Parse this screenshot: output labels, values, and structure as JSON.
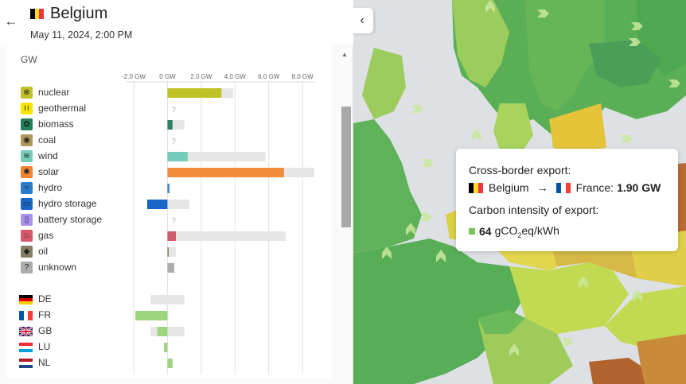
{
  "header": {
    "back_icon": "←",
    "zone_name": "Belgium",
    "datetime": "May 11, 2024, 2:00 PM",
    "collapse_icon": "‹",
    "flag_colors": [
      "#000000",
      "#fdda24",
      "#ef3340"
    ]
  },
  "panel": {
    "clipped_title": "",
    "unit": "GW",
    "scroll_up_icon": "▲"
  },
  "chart_data": {
    "type": "bar",
    "xlim": [
      -2.0,
      8.7
    ],
    "tick_values": [
      -2.0,
      0.0,
      2.0,
      4.0,
      6.0,
      8.0
    ],
    "tick_labels": [
      "-2.0 GW",
      "0 GW",
      "2.0 GW",
      "4.0 GW",
      "6.0 GW",
      "8.0 GW"
    ],
    "sources": [
      {
        "name": "nuclear",
        "icon": "nuclear-icon",
        "glyph": "⊗",
        "icon_color": "#c1c227",
        "value": 3.2,
        "capacity": 3.9,
        "color": "#c1c227",
        "unknown": false
      },
      {
        "name": "geothermal",
        "icon": "geothermal-icon",
        "glyph": "≀≀",
        "icon_color": "#f5e600",
        "value": 0,
        "capacity": 0,
        "color": "#f5e600",
        "unknown": true
      },
      {
        "name": "biomass",
        "icon": "biomass-icon",
        "glyph": "✿",
        "icon_color": "#1f7f5a",
        "value": 0.3,
        "capacity": 1.0,
        "color": "#2b8066",
        "unknown": false
      },
      {
        "name": "coal",
        "icon": "coal-icon",
        "glyph": "◉",
        "icon_color": "#b1985d",
        "value": 0,
        "capacity": 0,
        "color": "#b1985d",
        "unknown": true
      },
      {
        "name": "wind",
        "icon": "wind-icon",
        "glyph": "≋",
        "icon_color": "#74cdb9",
        "value": 1.2,
        "capacity": 5.8,
        "color": "#74cdb9",
        "unknown": false
      },
      {
        "name": "solar",
        "icon": "solar-icon",
        "glyph": "✺",
        "icon_color": "#f28433",
        "value": 6.9,
        "capacity": 8.7,
        "color": "#f48b3a",
        "unknown": false
      },
      {
        "name": "hydro",
        "icon": "hydro-icon",
        "glyph": "≈",
        "icon_color": "#2a7dcc",
        "value": 0.1,
        "capacity": 0.2,
        "color": "#2a7dcc",
        "unknown": false
      },
      {
        "name": "hydro storage",
        "icon": "hydro-storage-icon",
        "glyph": "▭",
        "icon_color": "#1a66c7",
        "value": -1.2,
        "capacity": 1.3,
        "color": "#1a66c7",
        "neg_capacity": -1.2,
        "unknown": false
      },
      {
        "name": "battery storage",
        "icon": "battery-storage-icon",
        "glyph": "▯",
        "icon_color": "#a993f0",
        "value": 0,
        "capacity": 0,
        "color": "#a993f0",
        "unknown": true
      },
      {
        "name": "gas",
        "icon": "gas-icon",
        "glyph": "♨",
        "icon_color": "#d9596b",
        "value": 0.5,
        "capacity": 7.0,
        "color": "#cf5a6b",
        "unknown": false
      },
      {
        "name": "oil",
        "icon": "oil-icon",
        "glyph": "◆",
        "icon_color": "#867d66",
        "value": 0,
        "capacity": 0.5,
        "color": "#867d66",
        "unknown": false
      },
      {
        "name": "unknown",
        "icon": "unknown-icon",
        "glyph": "?",
        "icon_color": "#acacac",
        "value": 0.4,
        "capacity": 0.4,
        "color": "#acacac",
        "unknown": false
      }
    ],
    "exchanges": [
      {
        "name": "DE",
        "value": 0,
        "capacity_neg": -1.0,
        "capacity_pos": 1.0,
        "flag": [
          "#000000",
          "#dd0000",
          "#ffce00"
        ],
        "flag_dir": "horizontal"
      },
      {
        "name": "FR",
        "value": -1.9,
        "capacity_neg": -1.9,
        "capacity_pos": 0,
        "flag": [
          "#0055a4",
          "#ffffff",
          "#ef4135"
        ],
        "flag_dir": "vertical"
      },
      {
        "name": "GB",
        "value": -0.6,
        "capacity_neg": -1.0,
        "capacity_pos": 1.0,
        "flag": [
          "#012169",
          "#ffffff",
          "#c8102e"
        ],
        "flag_dir": "uk"
      },
      {
        "name": "LU",
        "value": -0.2,
        "capacity_neg": -0.2,
        "capacity_pos": 0,
        "flag": [
          "#ed2939",
          "#ffffff",
          "#00a1de"
        ],
        "flag_dir": "horizontal"
      },
      {
        "name": "NL",
        "value": 0.3,
        "capacity_neg": 0,
        "capacity_pos": 0.3,
        "flag": [
          "#ae1c28",
          "#ffffff",
          "#21468b"
        ],
        "flag_dir": "horizontal"
      }
    ],
    "unknown_marker": "?",
    "exchange_color": "#9fd47e"
  },
  "tooltip": {
    "title1": "Cross-border export:",
    "from_zone": "Belgium",
    "arrow": "→",
    "to_zone": "France:",
    "amount": "1.90 GW",
    "title2": "Carbon intensity of export:",
    "intensity_value": "64",
    "intensity_unit_a": "gCO",
    "intensity_unit_sub": "2",
    "intensity_unit_b": "eq/kWh",
    "swatch_color": "#7dc25d",
    "fr_flag": [
      "#0055a4",
      "#ffffff",
      "#ef4135"
    ],
    "be_flag": [
      "#000000",
      "#fdda24",
      "#ef3340"
    ]
  }
}
